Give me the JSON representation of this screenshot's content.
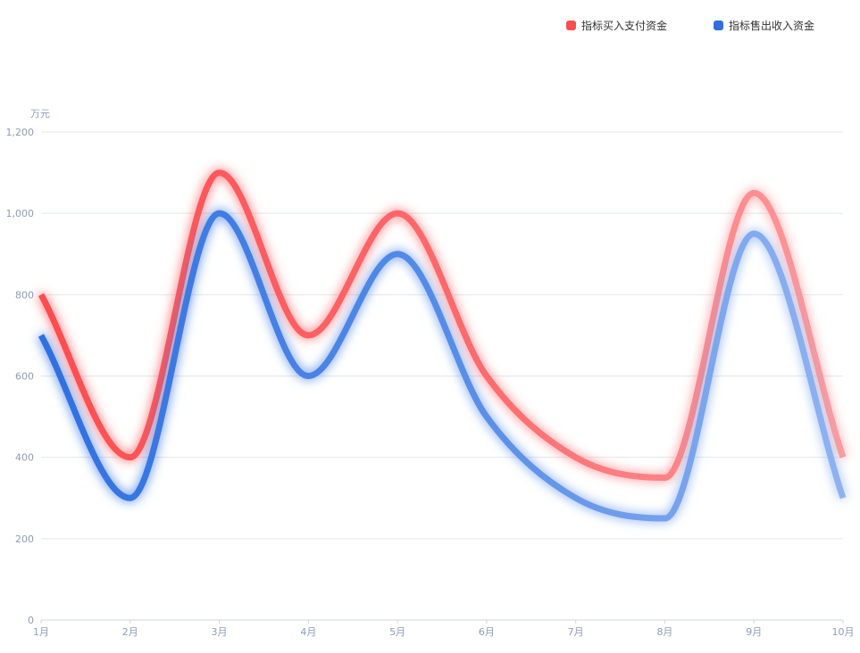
{
  "chart_data": {
    "type": "line",
    "title": "",
    "xlabel": "",
    "ylabel": "万元",
    "categories": [
      "1月",
      "2月",
      "3月",
      "4月",
      "5月",
      "6月",
      "7月",
      "8月",
      "9月",
      "10月"
    ],
    "series": [
      {
        "name": "指标买入支付资金",
        "color": "#ff4d4f",
        "values": [
          800,
          400,
          1100,
          700,
          1000,
          600,
          400,
          350,
          1050,
          400
        ]
      },
      {
        "name": "指标售出收入资金",
        "color": "#2f6fe0",
        "values": [
          700,
          300,
          1000,
          600,
          900,
          500,
          300,
          250,
          950,
          300
        ]
      }
    ],
    "ylim": [
      0,
      1200
    ],
    "yticks": [
      "0",
      "200",
      "400",
      "600",
      "800",
      "1,000",
      "1,200"
    ],
    "ytick_values": [
      0,
      200,
      400,
      600,
      800,
      1000,
      1200
    ],
    "grid": true,
    "smooth": true,
    "legend_position": "top-right"
  }
}
